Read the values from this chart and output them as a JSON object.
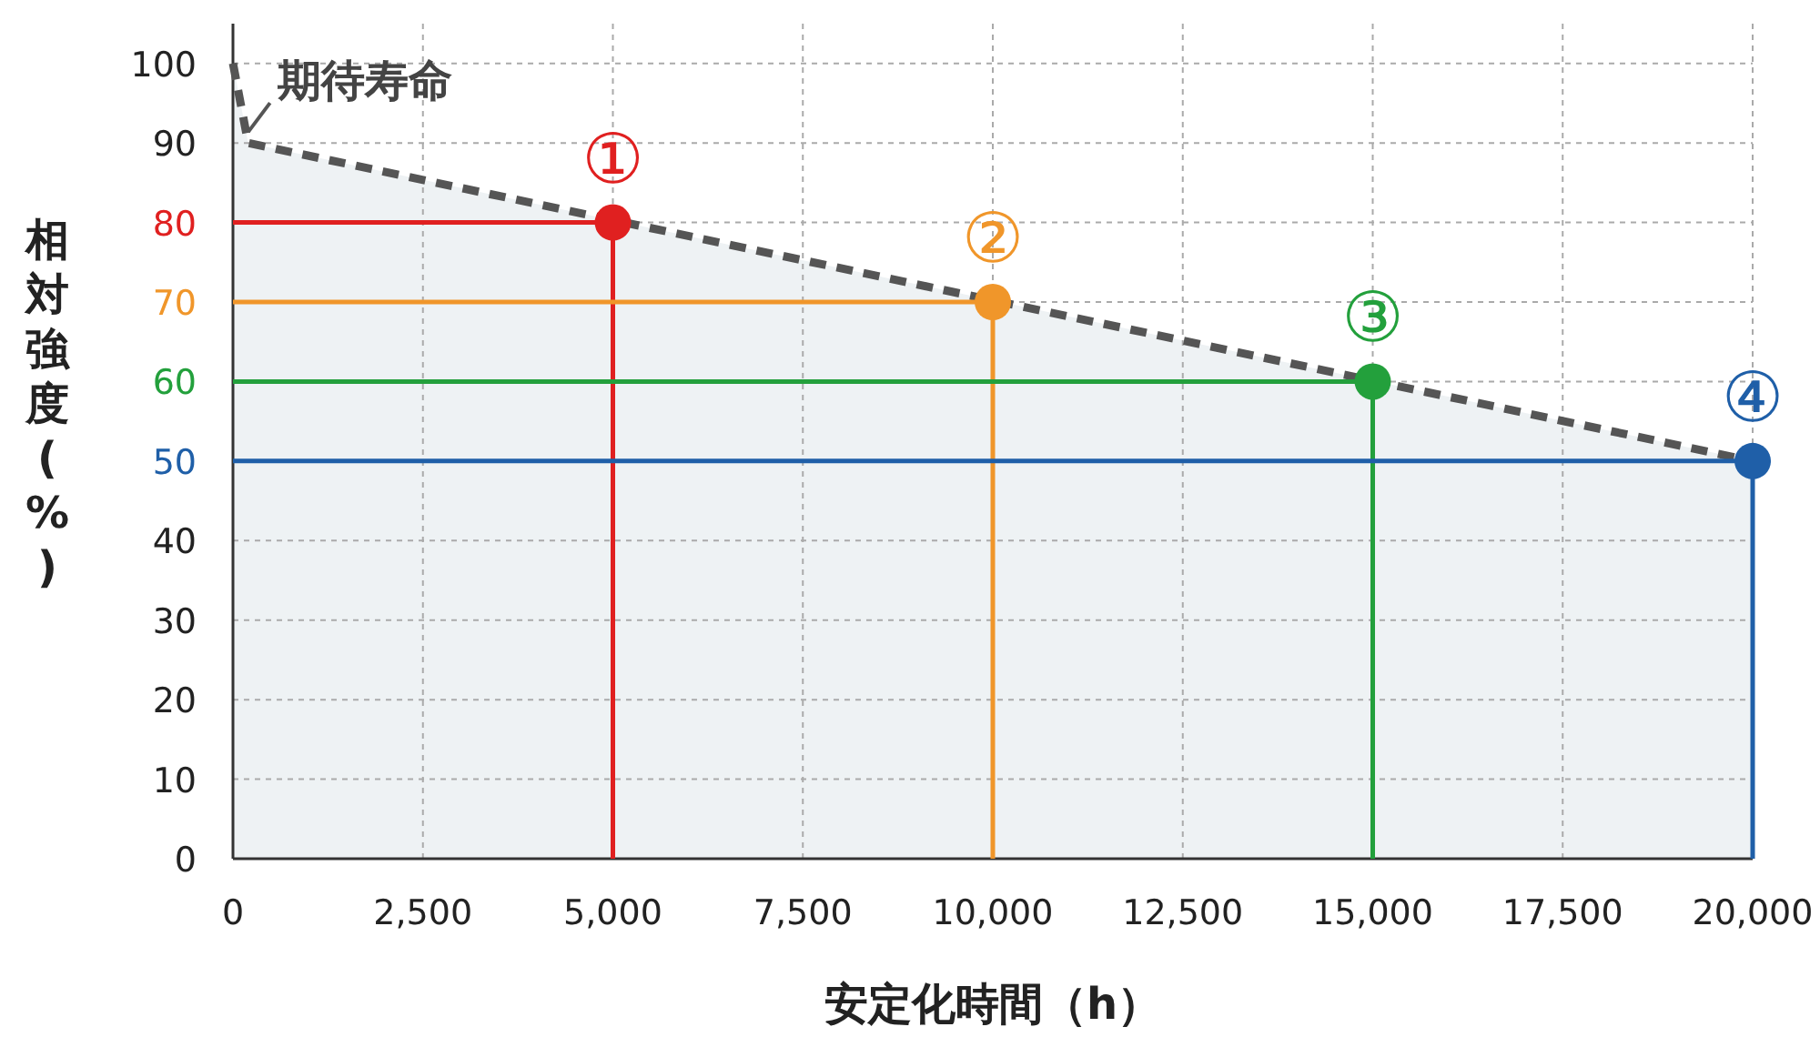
{
  "chart_data": {
    "type": "line",
    "xlabel": "安定化時間（h）",
    "ylabel": "相対強度(%)",
    "xlim": [
      0,
      20000
    ],
    "ylim": [
      0,
      105
    ],
    "xticks": [
      0,
      {
        "value": 2500,
        "label": "2,500"
      },
      {
        "value": 5000,
        "label": "5,000"
      },
      {
        "value": 7500,
        "label": "7,500"
      },
      {
        "value": 10000,
        "label": "10,000"
      },
      {
        "value": 12500,
        "label": "12,500"
      },
      {
        "value": 15000,
        "label": "15,000"
      },
      {
        "value": 17500,
        "label": "17,500"
      },
      {
        "value": 20000,
        "label": "20,000"
      }
    ],
    "yticks": [
      0,
      10,
      20,
      30,
      40,
      50,
      60,
      70,
      80,
      90,
      100
    ],
    "grid": true,
    "series": [
      {
        "type": "area",
        "color": "#555555",
        "line_style": "dashed",
        "x": [
          0,
          200,
          20000
        ],
        "values": [
          100,
          90,
          50
        ]
      },
      {
        "color": "#e02020",
        "x": [
          0,
          5000,
          5000
        ],
        "values": [
          80,
          80,
          0
        ]
      },
      {
        "color": "#f0962a",
        "x": [
          0,
          10000,
          10000
        ],
        "values": [
          70,
          70,
          0
        ]
      },
      {
        "color": "#23a03c",
        "x": [
          0,
          15000,
          15000
        ],
        "values": [
          60,
          60,
          0
        ]
      },
      {
        "color": "#1f5fa8",
        "x": [
          0,
          20000,
          20000
        ],
        "values": [
          50,
          50,
          0
        ]
      },
      {
        "type": "scatter",
        "marker": "circle",
        "x": [
          5000,
          10000,
          15000,
          20000
        ],
        "values": [
          80,
          70,
          60,
          50
        ],
        "colors": [
          "#e02020",
          "#f0962a",
          "#23a03c",
          "#1f5fa8"
        ],
        "value_labels": [
          "①",
          "②",
          "③",
          "④"
        ]
      }
    ],
    "annotations": [
      {
        "text": "期待寿命",
        "x": 200,
        "y": 90
      }
    ]
  }
}
